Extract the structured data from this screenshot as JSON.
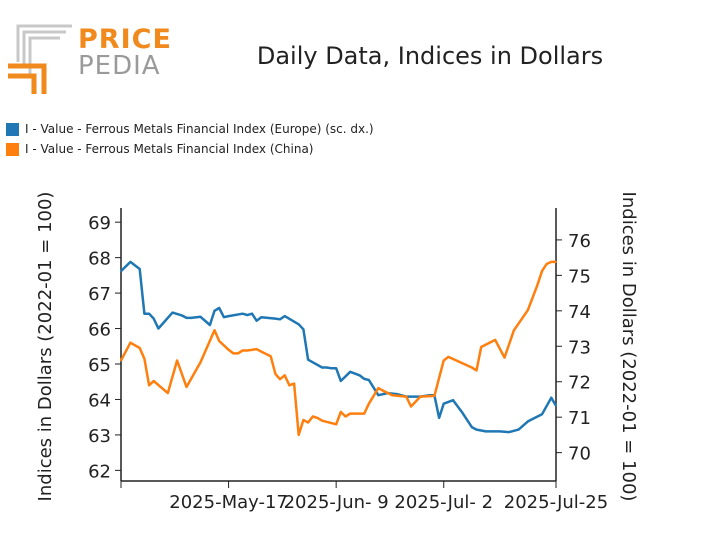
{
  "header": {
    "logo_word_1": "PRICE",
    "logo_word_2": "PEDIA",
    "title": "Daily Data, Indices in Dollars"
  },
  "colors": {
    "brand_orange": "#f08a1c",
    "brand_grey": "#9a9a9a",
    "europe": "#1f77b4",
    "china": "#ff7f0e"
  },
  "chart_data": {
    "type": "line",
    "title": "Daily Data, Indices in Dollars",
    "legend_position": "top-left",
    "grid": false,
    "x_tick_labels": [
      "2025-May-17",
      "2025-Jun- 9",
      "2025-Jul- 2",
      "2025-Jul-25"
    ],
    "y_left": {
      "label": "Indices in Dollars (2022-01 = 100)",
      "range": [
        61.7,
        69.4
      ],
      "ticks": [
        62,
        63,
        64,
        65,
        66,
        67,
        68,
        69
      ]
    },
    "y_right": {
      "label": "Indices in Dollars (2022-01 = 100)",
      "range": [
        69.2,
        76.9
      ],
      "ticks": [
        70,
        71,
        72,
        73,
        74,
        75,
        76
      ]
    },
    "series": [
      {
        "name": "I - Value - Ferrous Metals Financial Index (Europe) (sc. dx.)",
        "axis": "left",
        "color": "#1f77b4",
        "x": [
          "2025-04-24",
          "2025-04-26",
          "2025-04-28",
          "2025-04-29",
          "2025-04-30",
          "2025-05-01",
          "2025-05-02",
          "2025-05-05",
          "2025-05-07",
          "2025-05-08",
          "2025-05-09",
          "2025-05-11",
          "2025-05-13",
          "2025-05-14",
          "2025-05-15",
          "2025-05-16",
          "2025-05-17",
          "2025-05-20",
          "2025-05-21",
          "2025-05-22",
          "2025-05-23",
          "2025-05-24",
          "2025-05-27",
          "2025-05-28",
          "2025-05-29",
          "2025-06-01",
          "2025-06-02",
          "2025-06-03",
          "2025-06-06",
          "2025-06-07",
          "2025-06-08",
          "2025-06-09",
          "2025-06-10",
          "2025-06-12",
          "2025-06-14",
          "2025-06-15",
          "2025-06-16",
          "2025-06-18",
          "2025-06-20",
          "2025-06-22",
          "2025-06-24",
          "2025-06-27",
          "2025-06-29",
          "2025-06-30",
          "2025-07-01",
          "2025-07-02",
          "2025-07-04",
          "2025-07-06",
          "2025-07-08",
          "2025-07-09",
          "2025-07-11",
          "2025-07-14",
          "2025-07-16",
          "2025-07-18",
          "2025-07-20",
          "2025-07-23",
          "2025-07-25",
          "2025-07-26"
        ],
        "y": [
          67.62,
          67.88,
          67.68,
          66.42,
          66.42,
          66.28,
          66.0,
          66.45,
          66.37,
          66.3,
          66.3,
          66.33,
          66.1,
          66.5,
          66.58,
          66.32,
          66.35,
          66.42,
          66.38,
          66.42,
          66.22,
          66.32,
          66.28,
          66.26,
          66.35,
          66.12,
          65.98,
          65.12,
          64.9,
          64.9,
          64.88,
          64.88,
          64.52,
          64.78,
          64.68,
          64.58,
          64.55,
          64.12,
          64.18,
          64.15,
          64.08,
          64.08,
          64.12,
          64.12,
          63.48,
          63.88,
          63.98,
          63.62,
          63.22,
          63.15,
          63.1,
          63.1,
          63.08,
          63.15,
          63.38,
          63.58,
          64.05,
          63.82
        ]
      },
      {
        "name": "I - Value - Ferrous Metals Financial Index (China)",
        "axis": "right",
        "color": "#ff7f0e",
        "x": [
          "2025-04-24",
          "2025-04-26",
          "2025-04-28",
          "2025-04-29",
          "2025-04-30",
          "2025-05-01",
          "2025-05-04",
          "2025-05-06",
          "2025-05-08",
          "2025-05-11",
          "2025-05-14",
          "2025-05-15",
          "2025-05-17",
          "2025-05-18",
          "2025-05-19",
          "2025-05-20",
          "2025-05-21",
          "2025-05-23",
          "2025-05-24",
          "2025-05-26",
          "2025-05-27",
          "2025-05-28",
          "2025-05-29",
          "2025-05-30",
          "2025-05-31",
          "2025-06-01",
          "2025-06-02",
          "2025-06-03",
          "2025-06-04",
          "2025-06-05",
          "2025-06-06",
          "2025-06-09",
          "2025-06-10",
          "2025-06-11",
          "2025-06-12",
          "2025-06-15",
          "2025-06-16",
          "2025-06-18",
          "2025-06-19",
          "2025-06-21",
          "2025-06-24",
          "2025-06-25",
          "2025-06-27",
          "2025-06-30",
          "2025-07-02",
          "2025-07-03",
          "2025-07-08",
          "2025-07-09",
          "2025-07-10",
          "2025-07-13",
          "2025-07-15",
          "2025-07-17",
          "2025-07-20",
          "2025-07-22",
          "2025-07-23",
          "2025-07-24",
          "2025-07-25",
          "2025-07-26"
        ],
        "y": [
          72.6,
          73.1,
          72.95,
          72.65,
          71.9,
          72.02,
          71.68,
          72.6,
          71.85,
          72.55,
          73.45,
          73.15,
          72.9,
          72.8,
          72.8,
          72.88,
          72.88,
          72.92,
          72.85,
          72.72,
          72.22,
          72.07,
          72.18,
          71.9,
          71.95,
          70.5,
          70.92,
          70.85,
          71.02,
          70.98,
          70.9,
          70.8,
          71.15,
          71.02,
          71.1,
          71.1,
          71.38,
          71.82,
          71.75,
          71.62,
          71.58,
          71.3,
          71.58,
          71.6,
          72.6,
          72.7,
          72.4,
          72.32,
          72.98,
          73.18,
          72.68,
          73.45,
          74.02,
          74.72,
          75.12,
          75.32,
          75.38,
          75.38
        ]
      }
    ]
  }
}
